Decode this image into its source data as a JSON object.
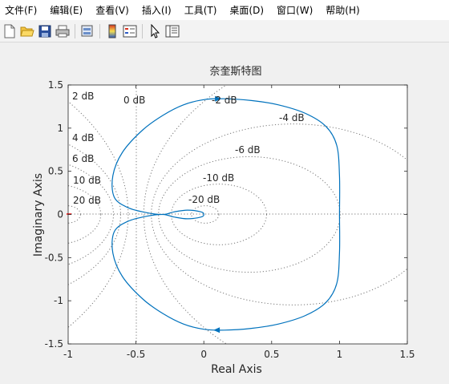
{
  "menubar": {
    "items": [
      "文件(F)",
      "编辑(E)",
      "查看(V)",
      "插入(I)",
      "工具(T)",
      "桌面(D)",
      "窗口(W)",
      "帮助(H)"
    ]
  },
  "toolbar": {
    "icons": [
      "new-file-icon",
      "open-folder-icon",
      "save-icon",
      "print-icon",
      "print-preview-icon",
      "insert-colorbar-icon",
      "insert-legend-icon",
      "edit-plot-arrow-icon",
      "property-inspector-icon"
    ]
  },
  "plot": {
    "title": "奈奎斯特图",
    "xlabel": "Real Axis",
    "ylabel": "Imaginary Axis",
    "xticks": [
      "-1",
      "-0.5",
      "0",
      "0.5",
      "1",
      "1.5"
    ],
    "yticks": [
      "1.5",
      "1",
      "0.5",
      "0",
      "-0.5",
      "-1",
      "-1.5"
    ],
    "db_labels": {
      "d0": "0 dB",
      "dm2": "-2 dB",
      "dm4": "-4 dB",
      "dm6": "-6 dB",
      "dm10": "-10 dB",
      "dm20": "-20 dB",
      "d2": "2 dB",
      "d4": "4 dB",
      "d6": "6 dB",
      "d10": "10 dB",
      "d20": "20 dB"
    },
    "colors": {
      "curve": "#0072bd",
      "grid": "#777777",
      "critical_point": "#ff0000"
    }
  },
  "chart_data": {
    "type": "line",
    "title": "奈奎斯特图",
    "xlabel": "Real Axis",
    "ylabel": "Imaginary Axis",
    "xlim": [
      -1,
      1.5
    ],
    "ylim": [
      -1.5,
      1.5
    ],
    "grid": "M-circles (dB)",
    "grid_labels": [
      "0 dB",
      "-2 dB",
      "-4 dB",
      "-6 dB",
      "-10 dB",
      "-20 dB",
      "2 dB",
      "4 dB",
      "6 dB",
      "10 dB",
      "20 dB"
    ],
    "series": [
      {
        "x": [
          1.0,
          1.0,
          0.98,
          0.9,
          0.75,
          0.55,
          0.35,
          0.15,
          0.0,
          -0.15,
          -0.3,
          -0.45,
          -0.6,
          -0.67,
          -0.66,
          -0.56,
          -0.42,
          -0.3,
          -0.22,
          -0.12,
          -0.02,
          0.0,
          -0.02,
          -0.12,
          -0.22,
          -0.3,
          -0.42,
          -0.56,
          -0.66,
          -0.67,
          -0.6,
          -0.45,
          -0.3,
          -0.15,
          0.0,
          0.15,
          0.35,
          0.55,
          0.75,
          0.9,
          0.98,
          1.0,
          1.0
        ],
        "y": [
          0.0,
          0.45,
          0.8,
          1.02,
          1.17,
          1.27,
          1.32,
          1.34,
          1.33,
          1.27,
          1.15,
          0.98,
          0.72,
          0.45,
          0.2,
          0.08,
          0.02,
          0.0,
          0.03,
          0.05,
          0.03,
          0.0,
          -0.03,
          -0.05,
          -0.03,
          0.0,
          -0.02,
          -0.08,
          -0.2,
          -0.45,
          -0.72,
          -0.98,
          -1.15,
          -1.27,
          -1.33,
          -1.34,
          -1.32,
          -1.27,
          -1.17,
          -1.02,
          -0.8,
          -0.45,
          0.0
        ]
      }
    ]
  }
}
